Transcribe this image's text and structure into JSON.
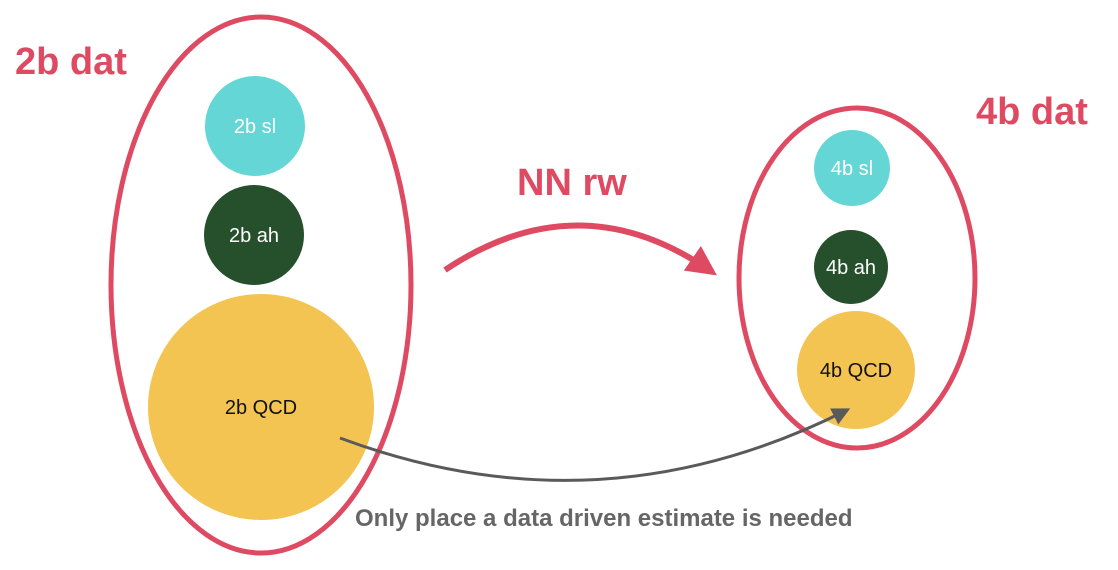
{
  "colors": {
    "group_outline": "#df4a63",
    "label_red": "#df4a63",
    "signal": "#65d6d6",
    "hh": "#26502b",
    "qcd": "#f4c453",
    "arrow_gray": "#5a5a5a",
    "note_text": "#666666"
  },
  "groups": {
    "left": {
      "label": "2b dat"
    },
    "right": {
      "label": "4b dat"
    }
  },
  "nodes": {
    "left_signal": "2b sl",
    "left_hh": "2b ah",
    "left_qcd": "2b QCD",
    "right_signal": "4b sl",
    "right_hh": "4b ah",
    "right_qcd": "4b QCD"
  },
  "arrows": {
    "reweight_label": "NN rw"
  },
  "note": "Only place a data driven estimate is needed"
}
